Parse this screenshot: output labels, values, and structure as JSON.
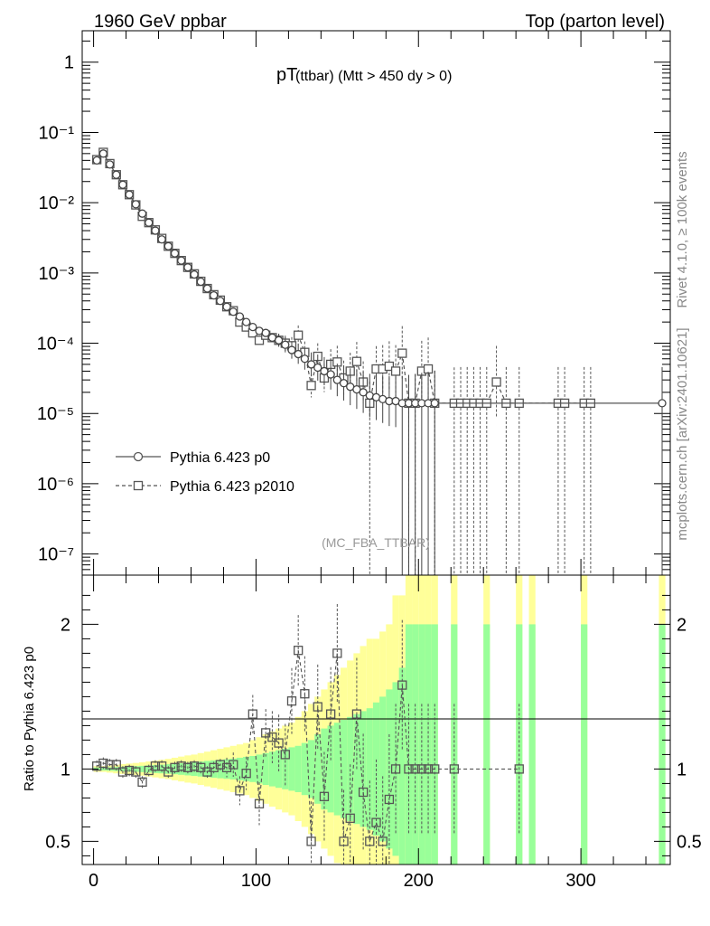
{
  "header": {
    "left": "1960 GeV ppbar",
    "right": "Top (parton level)"
  },
  "side": {
    "rivet": "Rivet 4.1.0, ≥ 100k events",
    "mcplots": "mcplots.cern.ch [arXiv:2401.10621]"
  },
  "chart_data": {
    "type": "line",
    "title_main": "pT",
    "title_sub": "(ttbar) (Mtt > 450 dy > 0)",
    "analysis_label": "(MC_FBA_TTBAR)",
    "xlabel": "",
    "ylabel_ratio": "Ratio to Pythia 6.423 p0",
    "xlim": [
      -7,
      355
    ],
    "ylim_main": [
      5e-08,
      2.8
    ],
    "ylim_ratio": [
      0.34,
      2.34
    ],
    "x_ticks": [
      "0",
      "100",
      "200",
      "300"
    ],
    "y_ticks_main": [
      "1",
      "10⁻¹",
      "10⁻²",
      "10⁻³",
      "10⁻⁴",
      "10⁻⁵",
      "10⁻⁶",
      "10⁻⁷"
    ],
    "y_ticks_ratio": [
      "0.5",
      "1",
      "2"
    ],
    "legend": [
      "Pythia 6.423 p0",
      "Pythia 6.423 p2010"
    ],
    "series": [
      {
        "name": "Pythia 6.423 p0",
        "style": "solid-circle",
        "color": "#555555",
        "x": [
          2,
          6,
          10,
          14,
          18,
          22,
          26,
          30,
          34,
          38,
          42,
          46,
          50,
          54,
          58,
          62,
          66,
          70,
          74,
          78,
          82,
          86,
          90,
          94,
          98,
          102,
          106,
          110,
          114,
          118,
          122,
          126,
          130,
          134,
          138,
          142,
          146,
          150,
          154,
          158,
          162,
          166,
          170,
          174,
          178,
          182,
          186,
          190,
          194,
          198,
          202,
          206,
          210,
          350
        ],
        "y": [
          0.04,
          0.05,
          0.035,
          0.025,
          0.018,
          0.013,
          0.0095,
          0.007,
          0.0052,
          0.004,
          0.003,
          0.0024,
          0.0019,
          0.0015,
          0.0012,
          0.00095,
          0.00075,
          0.0006,
          0.00048,
          0.0004,
          0.00033,
          0.00028,
          0.00024,
          0.0002,
          0.00017,
          0.00015,
          0.00014,
          0.00012,
          0.00011,
          9.5e-05,
          8e-05,
          7e-05,
          6e-05,
          5e-05,
          4.5e-05,
          4e-05,
          3.6e-05,
          3e-05,
          2.7e-05,
          2.4e-05,
          2.2e-05,
          2e-05,
          1.8e-05,
          1.7e-05,
          1.6e-05,
          1.5e-05,
          1.5e-05,
          1.4e-05,
          1.4e-05,
          1.4e-05,
          1.4e-05,
          1.4e-05,
          1.4e-05,
          1.4e-05
        ]
      },
      {
        "name": "Pythia 6.423 p2010",
        "style": "dashed-square",
        "color": "#555555",
        "x": [
          2,
          6,
          10,
          14,
          18,
          22,
          26,
          30,
          34,
          38,
          42,
          46,
          50,
          54,
          58,
          62,
          66,
          70,
          74,
          78,
          82,
          86,
          90,
          94,
          98,
          102,
          106,
          110,
          114,
          118,
          122,
          126,
          130,
          134,
          138,
          142,
          146,
          150,
          154,
          158,
          162,
          166,
          170,
          174,
          178,
          182,
          186,
          190,
          194,
          198,
          202,
          206,
          210,
          222,
          226,
          230,
          234,
          238,
          242,
          248,
          254,
          262,
          286,
          290,
          302,
          306
        ],
        "y": [
          0.041,
          0.052,
          0.036,
          0.025,
          0.018,
          0.013,
          0.0093,
          0.0064,
          0.0052,
          0.0041,
          0.0031,
          0.0024,
          0.0019,
          0.0015,
          0.0012,
          0.00097,
          0.00076,
          0.0006,
          0.00049,
          0.00041,
          0.00033,
          0.00029,
          0.0002,
          0.00017,
          0.00014,
          0.00011,
          0.00013,
          0.00012,
          0.00011,
          0.0001,
          9.2e-05,
          0.00013,
          7.4e-05,
          2.5e-05,
          6.5e-05,
          3.2e-05,
          5e-05,
          5.4e-05,
          3.2e-05,
          4e-05,
          5.5e-05,
          2.8e-05,
          1.4e-05,
          4.3e-05,
          4.3e-05,
          4.7e-05,
          4e-05,
          7.2e-05,
          1.4e-05,
          1.4e-05,
          4e-05,
          4.3e-05,
          1.4e-05,
          1.4e-05,
          1.4e-05,
          1.4e-05,
          1.4e-05,
          1.4e-05,
          1.4e-05,
          2.8e-05,
          1.4e-05,
          1.4e-05,
          1.4e-05,
          1.4e-05,
          1.4e-05,
          1.4e-05
        ]
      }
    ],
    "ratio_series": {
      "name": "Pythia 6.423 p2010 / Pythia 6.423 p0",
      "x": [
        2,
        6,
        10,
        14,
        18,
        22,
        26,
        30,
        34,
        38,
        42,
        46,
        50,
        54,
        58,
        62,
        66,
        70,
        74,
        78,
        82,
        86,
        90,
        94,
        98,
        102,
        106,
        110,
        114,
        118,
        122,
        126,
        130,
        134,
        138,
        142,
        146,
        150,
        154,
        158,
        162,
        166,
        170,
        174,
        178,
        182,
        186,
        190,
        194,
        198,
        202,
        206,
        210,
        222,
        262
      ],
      "y": [
        1.02,
        1.04,
        1.03,
        1.03,
        0.98,
        0.99,
        0.98,
        0.91,
        0.99,
        1.02,
        1.02,
        0.98,
        1.01,
        1.02,
        1.01,
        1.02,
        1.01,
        0.98,
        1.01,
        1.03,
        1.01,
        1.03,
        0.85,
        0.97,
        1.38,
        0.76,
        1.25,
        1.22,
        1.18,
        1.1,
        1.47,
        1.82,
        1.52,
        0.5,
        1.43,
        0.81,
        1.38,
        1.8,
        0.5,
        0.66,
        1.38,
        0.84,
        0.5,
        0.63,
        0.5,
        0.79,
        1.0,
        1.58,
        1.0,
        1.0,
        1.0,
        1.0,
        1.0,
        1.0,
        1.0
      ]
    },
    "ratio_bands": {
      "x": [
        2,
        6,
        10,
        14,
        18,
        22,
        26,
        30,
        34,
        38,
        42,
        46,
        50,
        54,
        58,
        62,
        66,
        70,
        74,
        78,
        82,
        86,
        90,
        94,
        98,
        102,
        106,
        110,
        114,
        118,
        122,
        126,
        130,
        134,
        138,
        142,
        146,
        150,
        154,
        158,
        162,
        166,
        170,
        174,
        178,
        182,
        186,
        190,
        194,
        198,
        202,
        206,
        210,
        222,
        242,
        262,
        270,
        302,
        350
      ],
      "green_half": [
        0.01,
        0.01,
        0.012,
        0.014,
        0.016,
        0.018,
        0.02,
        0.022,
        0.025,
        0.028,
        0.03,
        0.033,
        0.036,
        0.04,
        0.044,
        0.048,
        0.052,
        0.056,
        0.06,
        0.064,
        0.068,
        0.072,
        0.078,
        0.084,
        0.09,
        0.1,
        0.11,
        0.12,
        0.13,
        0.14,
        0.15,
        0.16,
        0.18,
        0.2,
        0.24,
        0.28,
        0.3,
        0.32,
        0.34,
        0.36,
        0.38,
        0.4,
        0.42,
        0.46,
        0.5,
        0.55,
        0.6,
        0.7,
        1.0,
        1.0,
        1.0,
        1.0,
        1.0,
        1.0,
        1.0,
        1.0,
        1.0,
        1.0,
        1.0
      ],
      "yellow_half": [
        0.02,
        0.02,
        0.025,
        0.03,
        0.034,
        0.038,
        0.042,
        0.046,
        0.052,
        0.058,
        0.064,
        0.07,
        0.078,
        0.086,
        0.094,
        0.1,
        0.11,
        0.12,
        0.13,
        0.14,
        0.15,
        0.16,
        0.17,
        0.18,
        0.2,
        0.22,
        0.24,
        0.26,
        0.28,
        0.3,
        0.32,
        0.36,
        0.4,
        0.45,
        0.5,
        0.55,
        0.6,
        0.65,
        0.7,
        0.75,
        0.8,
        0.85,
        0.9,
        0.9,
        0.95,
        1.0,
        1.2,
        1.2,
        1.4,
        1.4,
        1.4,
        1.4,
        1.4,
        1.4,
        1.4,
        1.4,
        1.4,
        1.4,
        1.4
      ]
    }
  }
}
